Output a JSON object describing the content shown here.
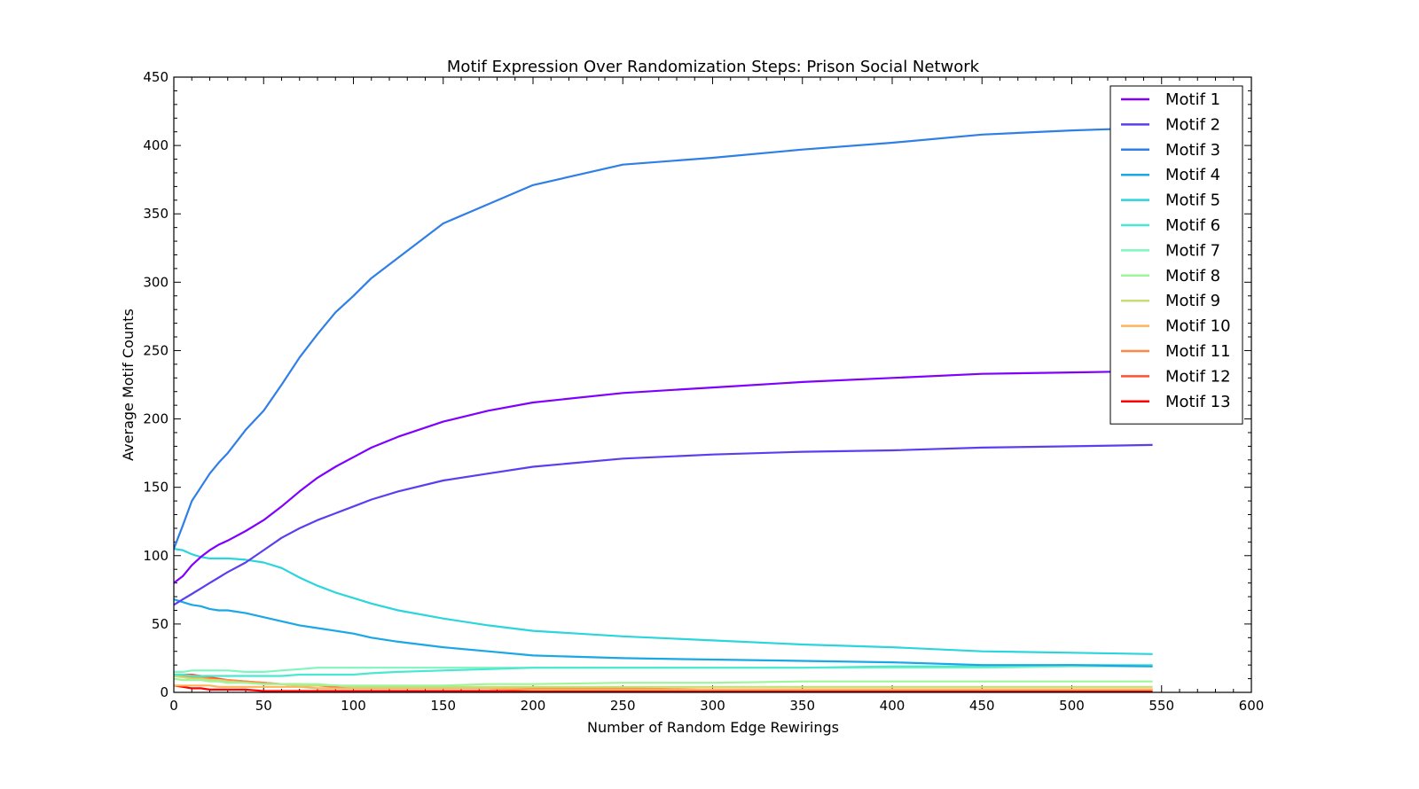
{
  "chart_data": {
    "type": "line",
    "title": "Motif Expression Over Randomization Steps: Prison Social Network",
    "xlabel": "Number of Random Edge Rewirings",
    "ylabel": "Average Motif Counts",
    "xlim": [
      0,
      600
    ],
    "ylim": [
      0,
      450
    ],
    "xticks": [
      0,
      50,
      100,
      150,
      200,
      250,
      300,
      350,
      400,
      450,
      500,
      550,
      600
    ],
    "yticks": [
      0,
      50,
      100,
      150,
      200,
      250,
      300,
      350,
      400,
      450
    ],
    "grid": false,
    "legend_position": "top-right",
    "x": [
      0,
      5,
      10,
      15,
      20,
      25,
      30,
      40,
      50,
      60,
      70,
      80,
      90,
      100,
      110,
      125,
      150,
      175,
      200,
      250,
      300,
      350,
      400,
      450,
      500,
      545
    ],
    "series": [
      {
        "name": "Motif 1",
        "color": "#8000ff",
        "values": [
          80,
          85,
          93,
          99,
          104,
          108,
          111,
          118,
          126,
          136,
          147,
          157,
          165,
          172,
          179,
          187,
          198,
          206,
          212,
          219,
          223,
          227,
          230,
          233,
          234,
          235
        ]
      },
      {
        "name": "Motif 2",
        "color": "#5a3ff0",
        "values": [
          64,
          68,
          72,
          76,
          80,
          84,
          88,
          95,
          104,
          113,
          120,
          126,
          131,
          136,
          141,
          147,
          155,
          160,
          165,
          171,
          174,
          176,
          177,
          179,
          180,
          181
        ]
      },
      {
        "name": "Motif 3",
        "color": "#2f7fe6",
        "values": [
          105,
          122,
          140,
          150,
          160,
          168,
          175,
          192,
          206,
          225,
          245,
          262,
          278,
          290,
          303,
          318,
          343,
          357,
          371,
          386,
          391,
          397,
          402,
          408,
          411,
          413
        ]
      },
      {
        "name": "Motif 4",
        "color": "#1aa7e6",
        "values": [
          68,
          66,
          64,
          63,
          61,
          60,
          60,
          58,
          55,
          52,
          49,
          47,
          45,
          43,
          40,
          37,
          33,
          30,
          27,
          25,
          24,
          23,
          22,
          20,
          20,
          19
        ]
      },
      {
        "name": "Motif 5",
        "color": "#2bd5dc",
        "values": [
          105,
          104,
          101,
          99,
          98,
          98,
          98,
          97,
          95,
          91,
          84,
          78,
          73,
          69,
          65,
          60,
          54,
          49,
          45,
          41,
          38,
          35,
          33,
          30,
          29,
          28
        ]
      },
      {
        "name": "Motif 6",
        "color": "#4ae8d2",
        "values": [
          13,
          13,
          12,
          12,
          12,
          12,
          12,
          12,
          12,
          12,
          13,
          13,
          13,
          13,
          14,
          15,
          16,
          17,
          18,
          18,
          18,
          18,
          19,
          19,
          20,
          20
        ]
      },
      {
        "name": "Motif 7",
        "color": "#7ff5bf",
        "values": [
          15,
          15,
          16,
          16,
          16,
          16,
          16,
          15,
          15,
          16,
          17,
          18,
          18,
          18,
          18,
          18,
          18,
          18,
          18,
          18,
          18,
          18,
          18,
          18,
          19,
          19
        ]
      },
      {
        "name": "Motif 8",
        "color": "#9ff59a",
        "values": [
          10,
          9,
          9,
          9,
          8,
          8,
          7,
          7,
          6,
          6,
          6,
          6,
          5,
          5,
          5,
          5,
          5,
          6,
          6,
          7,
          7,
          8,
          8,
          8,
          8,
          8
        ]
      },
      {
        "name": "Motif 9",
        "color": "#c8dd75",
        "values": [
          12,
          11,
          10,
          10,
          9,
          9,
          8,
          7,
          6,
          6,
          5,
          5,
          5,
          4,
          4,
          4,
          4,
          4,
          4,
          4,
          4,
          4,
          4,
          4,
          4,
          4
        ]
      },
      {
        "name": "Motif 10",
        "color": "#ffb45a",
        "values": [
          5,
          5,
          5,
          5,
          5,
          4,
          4,
          4,
          4,
          4,
          4,
          3,
          3,
          3,
          3,
          3,
          3,
          3,
          2,
          2,
          2,
          2,
          2,
          2,
          2,
          2
        ]
      },
      {
        "name": "Motif 11",
        "color": "#ff8a45",
        "values": [
          12,
          12,
          11,
          11,
          10,
          9,
          9,
          8,
          7,
          6,
          6,
          5,
          5,
          4,
          4,
          4,
          3,
          3,
          3,
          3,
          2,
          2,
          2,
          2,
          2,
          2
        ]
      },
      {
        "name": "Motif 12",
        "color": "#ff5030",
        "values": [
          13,
          13,
          13,
          12,
          11,
          10,
          9,
          8,
          7,
          6,
          5,
          5,
          4,
          4,
          3,
          3,
          3,
          3,
          2,
          2,
          2,
          2,
          2,
          2,
          2,
          2
        ]
      },
      {
        "name": "Motif 13",
        "color": "#ff0000",
        "values": [
          5,
          4,
          3,
          3,
          2,
          2,
          2,
          2,
          1,
          1,
          1,
          1,
          1,
          1,
          1,
          1,
          1,
          1,
          1,
          1,
          1,
          1,
          1,
          1,
          1,
          1
        ]
      }
    ]
  }
}
